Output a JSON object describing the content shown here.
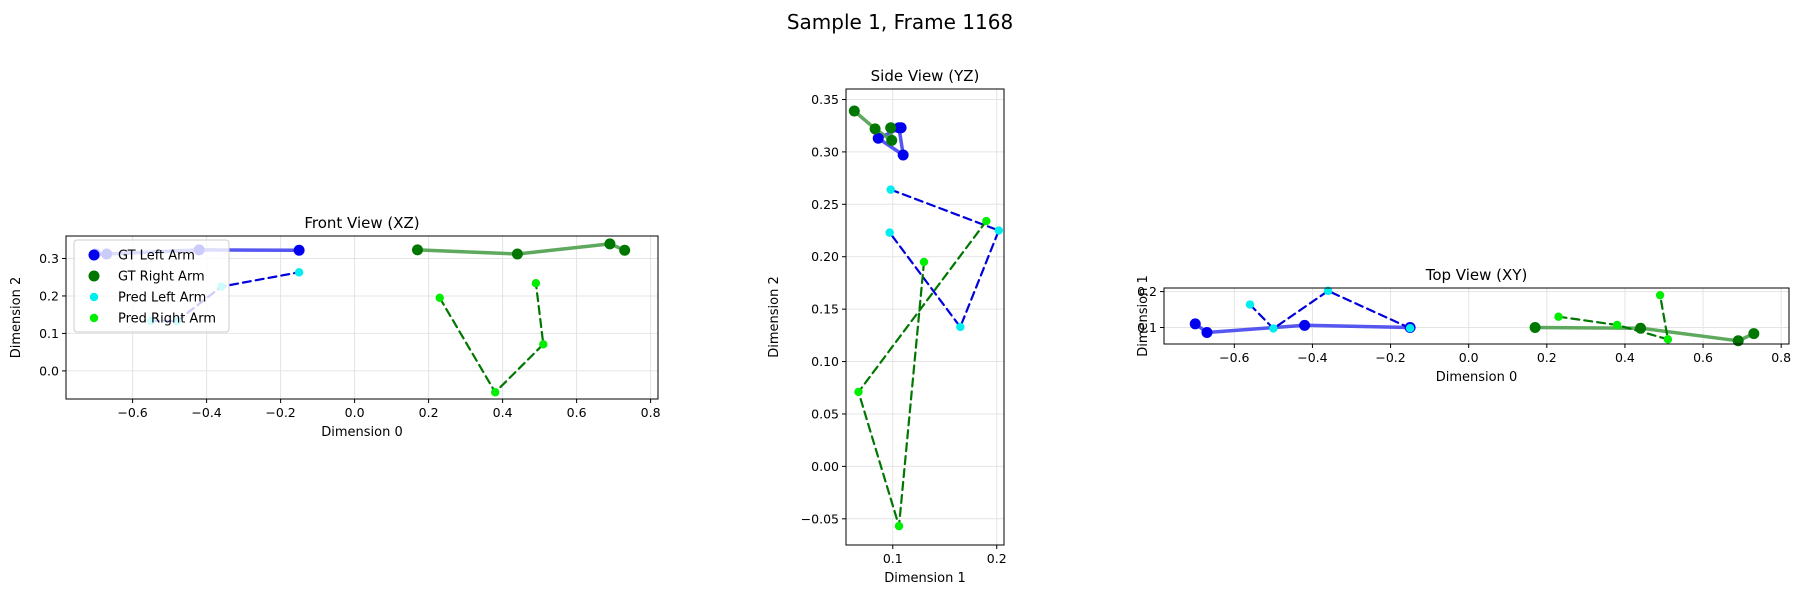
{
  "title": "Sample 1, Frame 1168",
  "colors": {
    "gt_left": "#0000ee",
    "gt_left_line": "#4444ee",
    "gt_right": "#007700",
    "gt_right_line": "#4ea04e",
    "pred_left": "#00eeee",
    "pred_left_line": "#0000dd",
    "pred_right": "#00ee00",
    "pred_right_line": "#007700",
    "grid": "#e4e4e4"
  },
  "legend": {
    "placement": "upper-left of Front View",
    "entries": [
      "GT Left Arm",
      "GT Right Arm",
      "Pred Left Arm",
      "Pred Right Arm"
    ]
  },
  "chart_data": [
    {
      "type": "line",
      "title": "Front View (XZ)",
      "xlabel": "Dimension 0",
      "ylabel": "Dimension 2",
      "xlim": [
        -0.78,
        0.82
      ],
      "ylim": [
        -0.075,
        0.36
      ],
      "xticks": [
        -0.6,
        -0.4,
        -0.2,
        0.0,
        0.2,
        0.4,
        0.6,
        0.8
      ],
      "xtick_labels": [
        "−0.6",
        "−0.4",
        "−0.2",
        "0.0",
        "0.2",
        "0.4",
        "0.6",
        "0.8"
      ],
      "yticks": [
        0.0,
        0.1,
        0.2,
        0.3
      ],
      "ytick_labels": [
        "0.0",
        "0.1",
        "0.2",
        "0.3"
      ],
      "grid": true,
      "series": [
        {
          "name": "GT Left Arm",
          "x": [
            -0.7,
            -0.67,
            -0.42,
            -0.15
          ],
          "y": [
            0.312,
            0.312,
            0.323,
            0.322
          ]
        },
        {
          "name": "GT Right Arm",
          "x": [
            0.17,
            0.44,
            0.69,
            0.73
          ],
          "y": [
            0.323,
            0.312,
            0.339,
            0.322
          ]
        },
        {
          "name": "Pred Left Arm",
          "x": [
            -0.55,
            -0.48,
            -0.36,
            -0.15
          ],
          "y": [
            0.134,
            0.133,
            0.225,
            0.263
          ]
        },
        {
          "name": "Pred Right Arm",
          "x": [
            0.23,
            0.38,
            0.51,
            0.49
          ],
          "y": [
            0.195,
            -0.057,
            0.071,
            0.234
          ]
        }
      ]
    },
    {
      "type": "line",
      "title": "Side View (YZ)",
      "xlabel": "Dimension 1",
      "ylabel": "Dimension 2",
      "xlim": [
        0.055,
        0.207
      ],
      "ylim": [
        -0.075,
        0.36
      ],
      "xticks": [
        0.1,
        0.2
      ],
      "xtick_labels": [
        "0.1",
        "0.2"
      ],
      "yticks": [
        -0.05,
        0.0,
        0.05,
        0.1,
        0.15,
        0.2,
        0.25,
        0.3,
        0.35
      ],
      "ytick_labels": [
        "−0.05",
        "0.00",
        "0.05",
        "0.10",
        "0.15",
        "0.20",
        "0.25",
        "0.30",
        "0.35"
      ],
      "grid": true,
      "series": [
        {
          "name": "GT Left Arm",
          "x": [
            0.108,
            0.086,
            0.11,
            0.106
          ],
          "y": [
            0.323,
            0.313,
            0.297,
            0.323
          ]
        },
        {
          "name": "GT Right Arm",
          "x": [
            0.063,
            0.083,
            0.099,
            0.098
          ],
          "y": [
            0.339,
            0.322,
            0.311,
            0.323
          ]
        },
        {
          "name": "Pred Left Arm",
          "x": [
            0.098,
            0.202,
            0.165,
            0.097
          ],
          "y": [
            0.264,
            0.225,
            0.133,
            0.223
          ]
        },
        {
          "name": "Pred Right Arm",
          "x": [
            0.13,
            0.106,
            0.067,
            0.19
          ],
          "y": [
            0.195,
            -0.057,
            0.071,
            0.234
          ]
        }
      ]
    },
    {
      "type": "line",
      "title": "Top View (XY)",
      "xlabel": "Dimension 0",
      "ylabel": "Dimension 1",
      "xlim": [
        -0.78,
        0.82
      ],
      "ylim": [
        0.054,
        0.21
      ],
      "xticks": [
        -0.6,
        -0.4,
        -0.2,
        0.0,
        0.2,
        0.4,
        0.6,
        0.8
      ],
      "xtick_labels": [
        "−0.6",
        "−0.4",
        "−0.2",
        "0.0",
        "0.2",
        "0.4",
        "0.6",
        "0.8"
      ],
      "yticks": [
        0.1,
        0.2
      ],
      "ytick_labels": [
        "0.1",
        "0.2"
      ],
      "grid": true,
      "series": [
        {
          "name": "GT Left Arm",
          "x": [
            -0.7,
            -0.67,
            -0.42,
            -0.15
          ],
          "y": [
            0.11,
            0.086,
            0.106,
            0.1
          ]
        },
        {
          "name": "GT Right Arm",
          "x": [
            0.17,
            0.44,
            0.69,
            0.73
          ],
          "y": [
            0.1,
            0.098,
            0.063,
            0.083
          ]
        },
        {
          "name": "Pred Left Arm",
          "x": [
            -0.56,
            -0.5,
            -0.36,
            -0.15
          ],
          "y": [
            0.164,
            0.097,
            0.202,
            0.098
          ]
        },
        {
          "name": "Pred Right Arm",
          "x": [
            0.23,
            0.38,
            0.51,
            0.49
          ],
          "y": [
            0.13,
            0.107,
            0.067,
            0.19
          ]
        }
      ]
    }
  ]
}
